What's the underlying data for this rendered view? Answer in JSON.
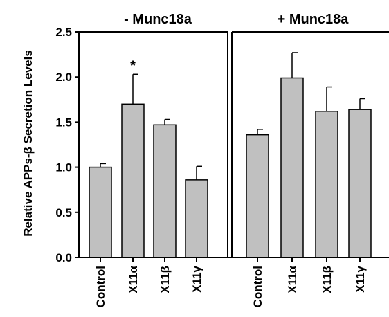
{
  "chart_data": {
    "type": "bar",
    "ylabel": "Relative APPs-β Secretion Levels",
    "ylim": [
      0,
      2.5
    ],
    "yticks": [
      "0.0",
      "0.5",
      "1.0",
      "1.5",
      "2.0",
      "2.5"
    ],
    "grid": false,
    "bar_color": "#c0c0c0",
    "panels": [
      {
        "title": "- Munc18a",
        "categories": [
          "Control",
          "X11α",
          "X11β",
          "X11γ"
        ],
        "values": [
          1.0,
          1.7,
          1.47,
          0.86
        ],
        "errors": [
          0.04,
          0.33,
          0.06,
          0.15
        ],
        "annotations": [
          "",
          "*",
          "",
          ""
        ]
      },
      {
        "title": "+ Munc18a",
        "categories": [
          "Control",
          "X11α",
          "X11β",
          "X11γ"
        ],
        "values": [
          1.36,
          1.99,
          1.62,
          1.64
        ],
        "errors": [
          0.06,
          0.28,
          0.27,
          0.12
        ],
        "annotations": [
          "",
          "",
          "",
          ""
        ]
      }
    ]
  }
}
